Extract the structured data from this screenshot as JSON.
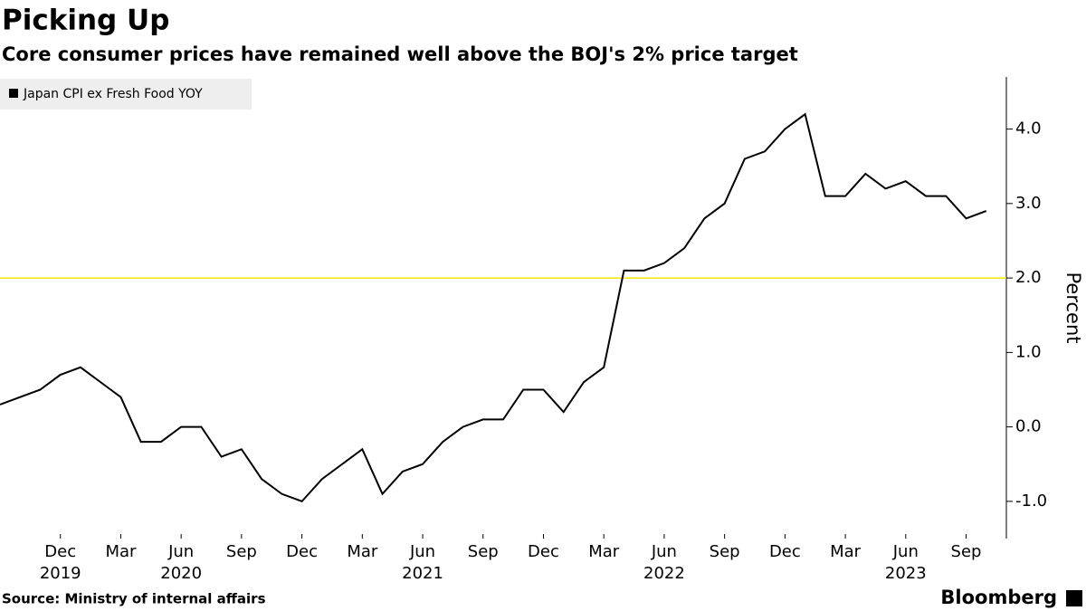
{
  "chart_data": {
    "type": "line",
    "title": "Picking Up",
    "subtitle": "Core consumer prices have remained well above the BOJ's 2% price target",
    "x": [
      "2019-09",
      "2019-10",
      "2019-11",
      "2019-12",
      "2020-01",
      "2020-02",
      "2020-03",
      "2020-04",
      "2020-05",
      "2020-06",
      "2020-07",
      "2020-08",
      "2020-09",
      "2020-10",
      "2020-11",
      "2020-12",
      "2021-01",
      "2021-02",
      "2021-03",
      "2021-04",
      "2021-05",
      "2021-06",
      "2021-07",
      "2021-08",
      "2021-09",
      "2021-10",
      "2021-11",
      "2021-12",
      "2022-01",
      "2022-02",
      "2022-03",
      "2022-04",
      "2022-05",
      "2022-06",
      "2022-07",
      "2022-08",
      "2022-09",
      "2022-10",
      "2022-11",
      "2022-12",
      "2023-01",
      "2023-02",
      "2023-03",
      "2023-04",
      "2023-05",
      "2023-06",
      "2023-07",
      "2023-08",
      "2023-09",
      "2023-10"
    ],
    "series": [
      {
        "name": "Japan CPI ex Fresh Food YOY",
        "color": "#000000",
        "values": [
          0.3,
          0.4,
          0.5,
          0.7,
          0.8,
          0.6,
          0.4,
          -0.2,
          -0.2,
          0.0,
          0.0,
          -0.4,
          -0.3,
          -0.7,
          -0.9,
          -1.0,
          -0.7,
          -0.5,
          -0.3,
          -0.9,
          -0.6,
          -0.5,
          -0.2,
          0.0,
          0.1,
          0.1,
          0.5,
          0.5,
          0.2,
          0.6,
          0.8,
          2.1,
          2.1,
          2.2,
          2.4,
          2.8,
          3.0,
          3.6,
          3.7,
          4.0,
          4.2,
          3.1,
          3.1,
          3.4,
          3.2,
          3.3,
          3.1,
          3.1,
          2.8,
          2.9
        ]
      }
    ],
    "xlim": [
      "2019-09",
      "2023-11"
    ],
    "xticks": [
      {
        "value": "2019-12",
        "label": "Dec"
      },
      {
        "value": "2020-03",
        "label": "Mar"
      },
      {
        "value": "2020-06",
        "label": "Jun"
      },
      {
        "value": "2020-09",
        "label": "Sep"
      },
      {
        "value": "2020-12",
        "label": "Dec"
      },
      {
        "value": "2021-03",
        "label": "Mar"
      },
      {
        "value": "2021-06",
        "label": "Jun"
      },
      {
        "value": "2021-09",
        "label": "Sep"
      },
      {
        "value": "2021-12",
        "label": "Dec"
      },
      {
        "value": "2022-03",
        "label": "Mar"
      },
      {
        "value": "2022-06",
        "label": "Jun"
      },
      {
        "value": "2022-09",
        "label": "Sep"
      },
      {
        "value": "2022-12",
        "label": "Dec"
      },
      {
        "value": "2023-03",
        "label": "Mar"
      },
      {
        "value": "2023-06",
        "label": "Jun"
      },
      {
        "value": "2023-09",
        "label": "Sep"
      }
    ],
    "xyears": [
      {
        "value": "2019-12",
        "label": "2019"
      },
      {
        "value": "2020-06",
        "label": "2020"
      },
      {
        "value": "2021-06",
        "label": "2021"
      },
      {
        "value": "2022-06",
        "label": "2022"
      },
      {
        "value": "2023-06",
        "label": "2023"
      }
    ],
    "ylim": [
      -1.5,
      4.7
    ],
    "yticks": [
      {
        "value": -1,
        "label": "-1.0"
      },
      {
        "value": 0,
        "label": "0.0"
      },
      {
        "value": 1,
        "label": "1.0"
      },
      {
        "value": 2,
        "label": "2.0"
      },
      {
        "value": 3,
        "label": "3.0"
      },
      {
        "value": 4,
        "label": "4.0"
      }
    ],
    "ylabel": "Percent",
    "target_line": {
      "value": 2,
      "color": "#f2e600"
    },
    "source": "Source: Ministry of internal affairs",
    "brand": "Bloomberg"
  }
}
